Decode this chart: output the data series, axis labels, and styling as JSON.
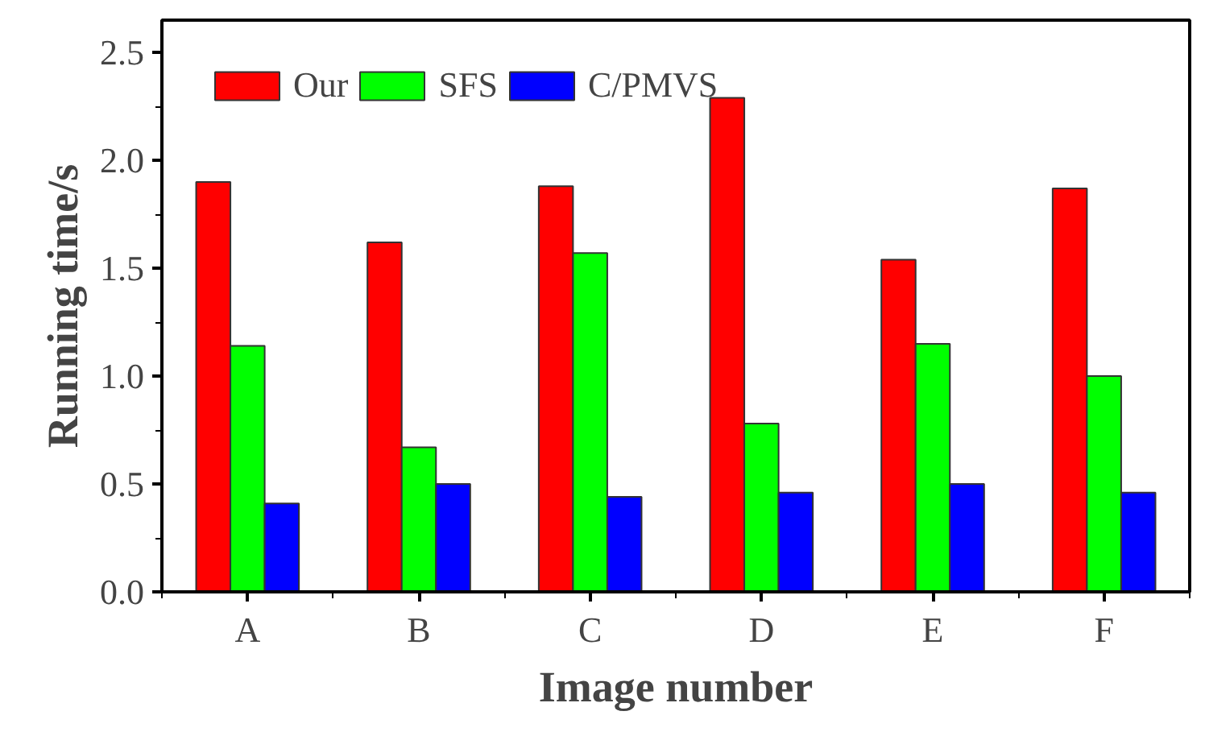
{
  "chart_data": {
    "type": "bar",
    "xlabel": "Image number",
    "ylabel": "Running time/s",
    "categories": [
      "A",
      "B",
      "C",
      "D",
      "E",
      "F"
    ],
    "series": [
      {
        "name": "Our",
        "color": "#ff0000",
        "values": [
          1.9,
          1.62,
          1.88,
          2.29,
          1.54,
          1.87
        ]
      },
      {
        "name": "SFS",
        "color": "#00ff00",
        "values": [
          1.14,
          0.67,
          1.57,
          0.78,
          1.15,
          1.0
        ]
      },
      {
        "name": "C/PMVS",
        "color": "#0000ff",
        "values": [
          0.41,
          0.5,
          0.44,
          0.46,
          0.5,
          0.46
        ]
      }
    ],
    "ylim": [
      0,
      2.65
    ],
    "yticks": [
      {
        "value": 0,
        "label": "0.0"
      },
      {
        "value": 0.5,
        "label": "0.5"
      },
      {
        "value": 1,
        "label": "1.0"
      },
      {
        "value": 1.5,
        "label": "1.5"
      },
      {
        "value": 2,
        "label": "2.0"
      },
      {
        "value": 2.5,
        "label": "2.5"
      }
    ],
    "grid": false,
    "legend": "top left"
  }
}
